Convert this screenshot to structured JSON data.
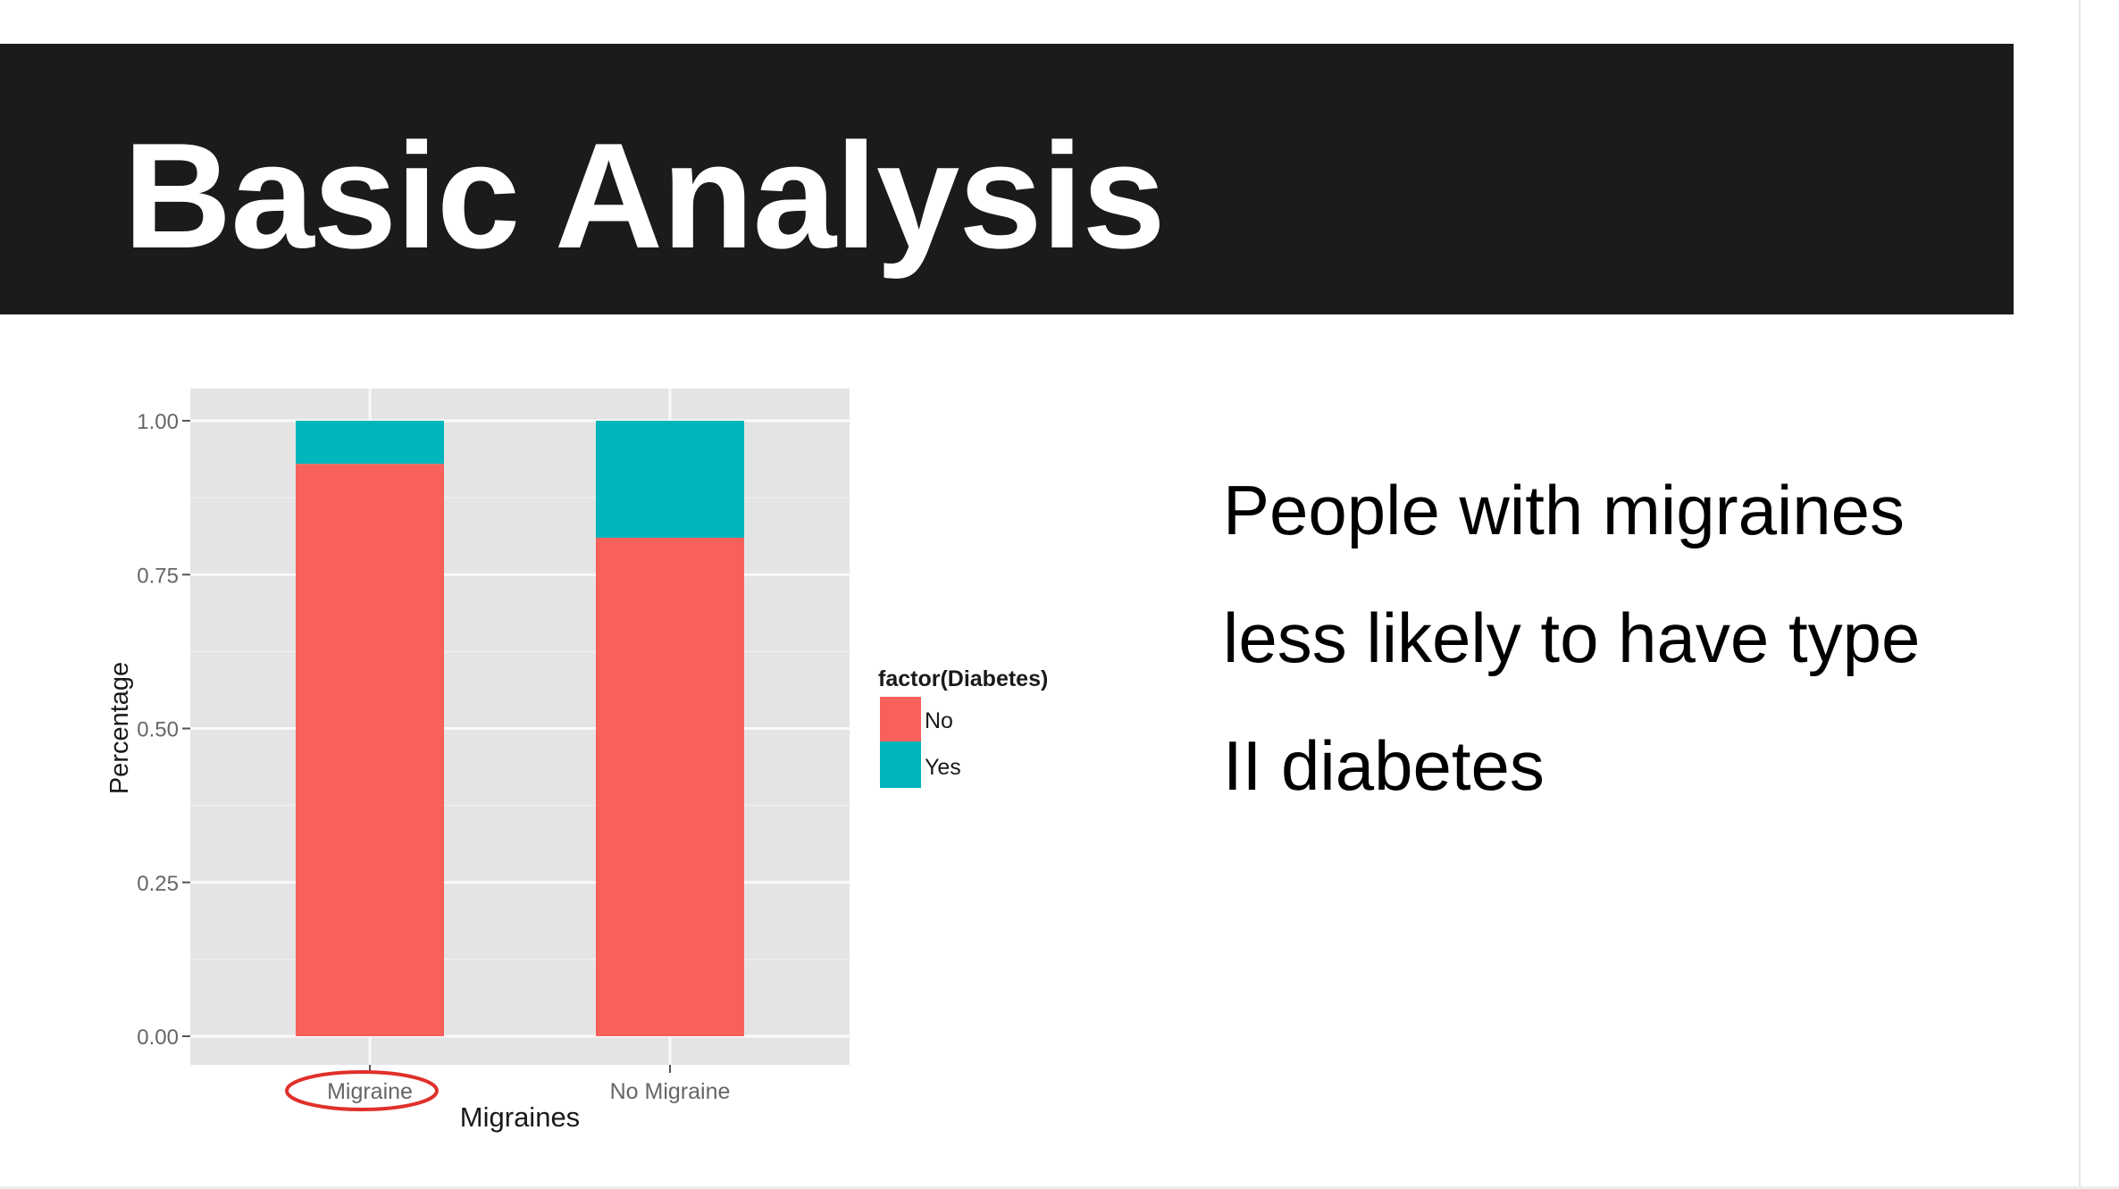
{
  "slide": {
    "title": "Basic Analysis",
    "body_lines": [
      "People with migraines",
      "less likely to have type",
      "II diabetes"
    ]
  },
  "chart_data": {
    "type": "bar",
    "stacked": true,
    "categories": [
      "Migraine",
      "No Migraine"
    ],
    "series": [
      {
        "name": "No",
        "values": [
          0.93,
          0.81
        ],
        "color": "#F8605C"
      },
      {
        "name": "Yes",
        "values": [
          0.07,
          0.19
        ],
        "color": "#00B6BD"
      }
    ],
    "xlabel": "Migraines",
    "ylabel": "Percentage",
    "ylim": [
      0,
      1
    ],
    "yticks": [
      "0.00",
      "0.25",
      "0.50",
      "0.75",
      "1.00"
    ],
    "legend_title": "factor(Diabetes)",
    "legend_position": "right",
    "grid": true,
    "panel_background": "#E4E4E4",
    "annotation": {
      "type": "ellipse",
      "target": "Migraine",
      "color": "#E0302A"
    }
  }
}
